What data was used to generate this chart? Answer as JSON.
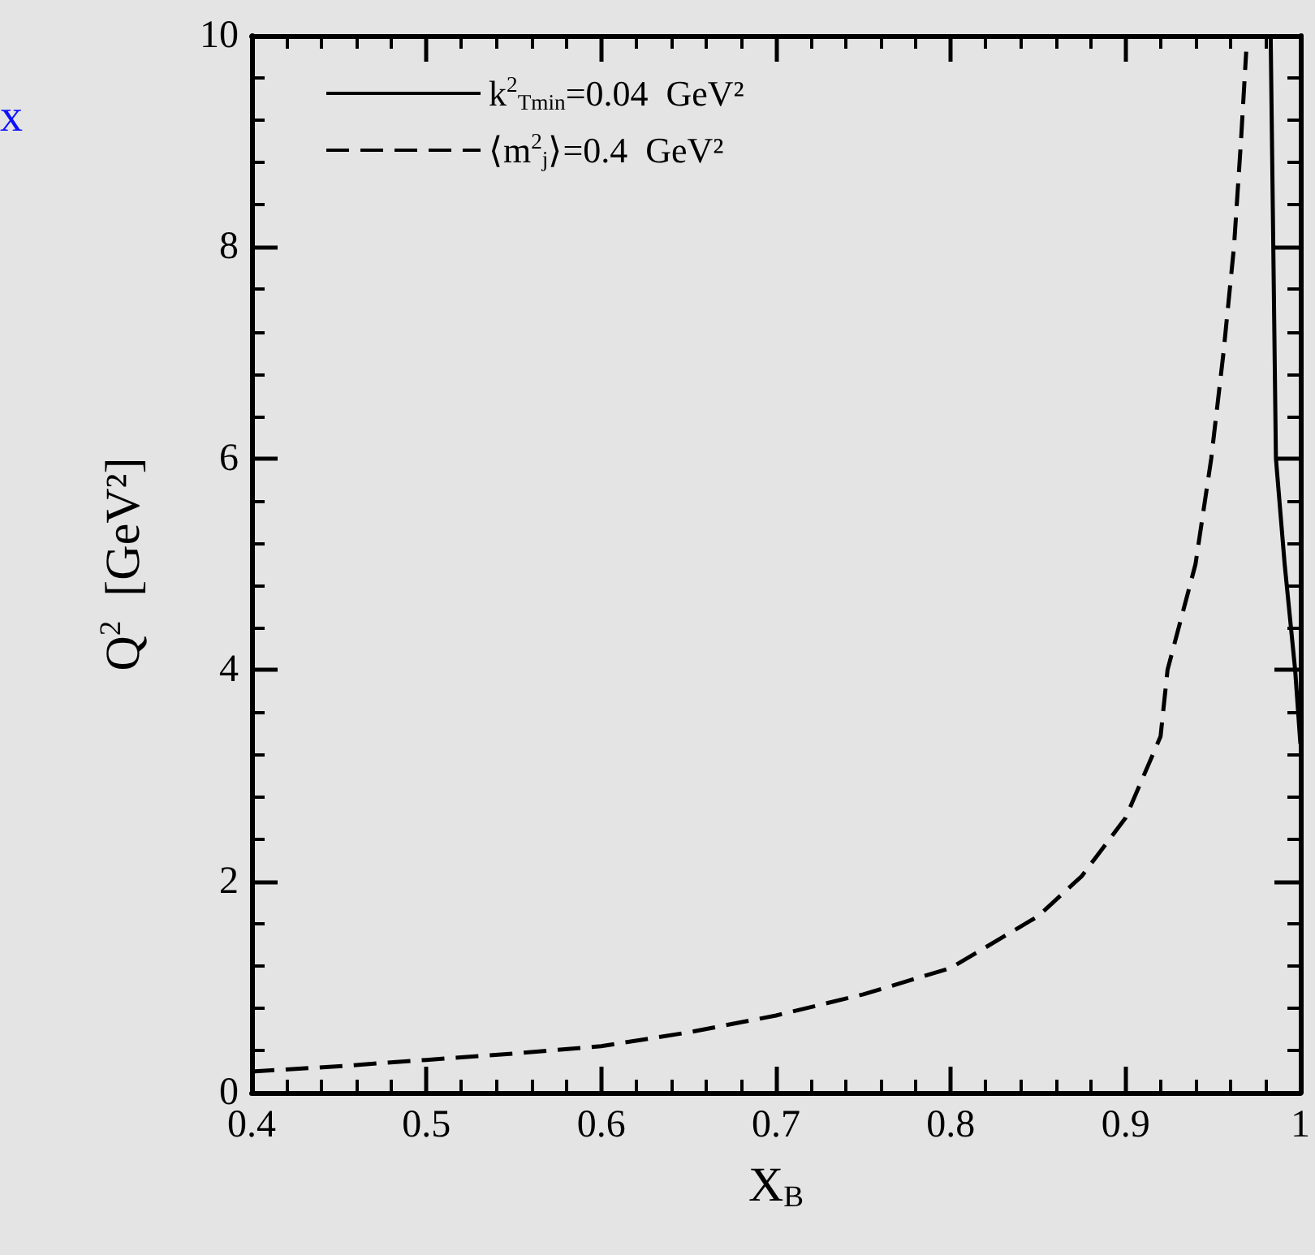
{
  "chart_data": {
    "type": "line",
    "xlabel": "X$_{B}$",
    "ylabel": "Q$^{2}$  [GeV²]",
    "annotations": [
      "x"
    ],
    "xlim": [
      0.4,
      1
    ],
    "xticks": [
      0.4,
      0.5,
      0.6,
      0.7,
      0.8,
      0.9,
      1
    ],
    "ylim": [
      0,
      10
    ],
    "yticks": [
      0,
      2,
      4,
      6,
      8,
      10
    ],
    "grid": false,
    "legend": "top left",
    "marker": "none",
    "series": [
      {
        "name": "k$^{2}$$_{Tmin}$=0.04  GeV²",
        "color": "#000000",
        "line_style": "solid",
        "x": [
          0.983,
          0.986,
          0.991,
          0.997,
          1.0
        ],
        "values": [
          10,
          6,
          5,
          4,
          3.3
        ]
      },
      {
        "name": "⟨m$^{2}$$_{j}$⟩=0.4  GeV²",
        "color": "#000000",
        "line_style": "dashed",
        "x": [
          0.4,
          0.45,
          0.5,
          0.55,
          0.6,
          0.65,
          0.7,
          0.75,
          0.8,
          0.85,
          0.875,
          0.9,
          0.92,
          0.924,
          0.94,
          0.949,
          0.956,
          0.962,
          0.966,
          0.969
        ],
        "values": [
          0.2,
          0.25,
          0.31,
          0.37,
          0.44,
          0.57,
          0.73,
          0.93,
          1.18,
          1.67,
          2.05,
          2.6,
          3.37,
          4,
          5,
          6,
          7,
          8,
          9,
          9.85
        ]
      }
    ]
  }
}
